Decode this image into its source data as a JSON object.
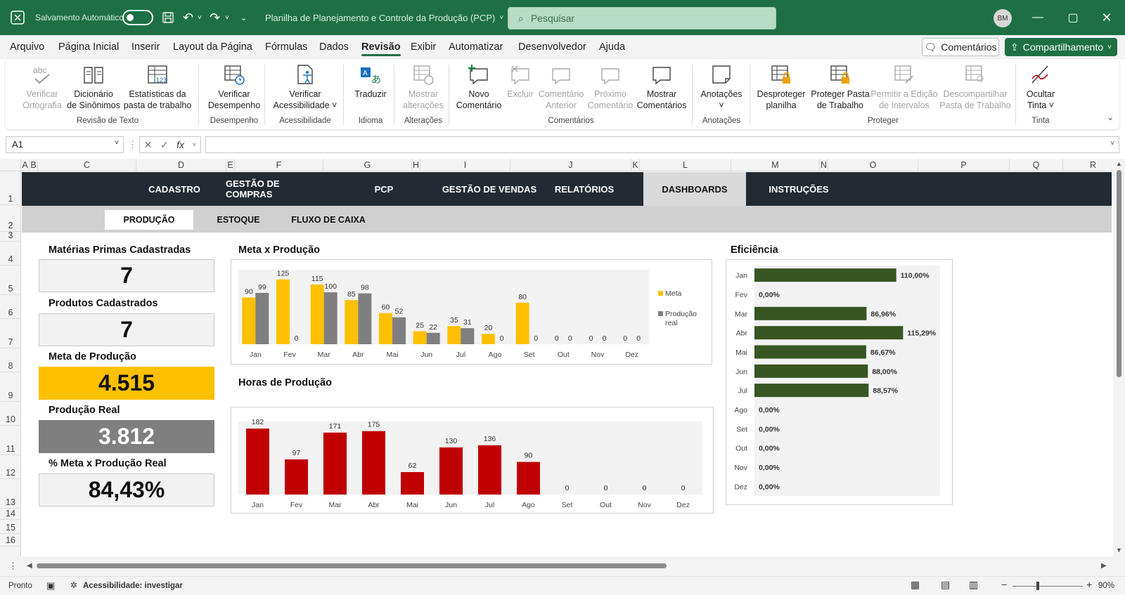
{
  "titlebar": {
    "autosave_label": "Salvamento Automático",
    "doc_title": "Planilha de Planejamento e Controle da Produção (PCP)",
    "search_placeholder": "Pesquisar",
    "avatar_initials": "BM"
  },
  "menu": {
    "items": [
      "Arquivo",
      "Página Inicial",
      "Inserir",
      "Layout da Página",
      "Fórmulas",
      "Dados",
      "Revisão",
      "Exibir",
      "Automatizar",
      "Desenvolvedor",
      "Ajuda"
    ],
    "active": "Revisão",
    "comments_button": "Comentários",
    "share_button": "Compartilhamento"
  },
  "ribbon": {
    "buttons": {
      "spelling": [
        "Verificar",
        "Ortografia"
      ],
      "thesaurus": [
        "Dicionário",
        "de Sinônimos"
      ],
      "stats": [
        "Estatísticas da",
        "pasta de trabalho"
      ],
      "performance": [
        "Verificar",
        "Desempenho"
      ],
      "accessibility": [
        "Verificar",
        "Acessibilidade ˅"
      ],
      "translate": [
        "Traduzir",
        ""
      ],
      "show_changes": [
        "Mostrar",
        "alterações"
      ],
      "new_comment": [
        "Novo",
        "Comentário"
      ],
      "delete": [
        "Excluir",
        ""
      ],
      "prev_comment": [
        "Comentário",
        "Anterior"
      ],
      "next_comment": [
        "Próximo",
        "Comentário"
      ],
      "show_comments": [
        "Mostrar",
        "Comentários"
      ],
      "notes": [
        "Anotações",
        "˅"
      ],
      "unprotect_sheet": [
        "Desproteger",
        "planilha"
      ],
      "protect_workbook": [
        "Proteger Pasta",
        "de Trabalho"
      ],
      "allow_edit": [
        "Permitir a Edição",
        "de Intervalos"
      ],
      "unshare": [
        "Descompartilhar",
        "Pasta de Trabalho"
      ],
      "hide_ink": [
        "Ocultar",
        "Tinta ˅"
      ]
    },
    "groups": [
      "Revisão de Texto",
      "Desempenho",
      "Acessibilidade",
      "Idioma",
      "Alterações",
      "Comentários",
      "Anotações",
      "Proteger",
      "Tinta"
    ]
  },
  "formula_bar": {
    "name_box": "A1",
    "fx": "fx",
    "value": ""
  },
  "columns": [
    "A",
    "B",
    "C",
    "D",
    "E",
    "F",
    "G",
    "H",
    "I",
    "J",
    "K",
    "L",
    "M",
    "N",
    "O",
    "P",
    "Q",
    "R"
  ],
  "rows": [
    "1",
    "2",
    "3",
    "4",
    "5",
    "6",
    "7",
    "8",
    "9",
    "10",
    "11",
    "12",
    "13",
    "14",
    "15",
    "16"
  ],
  "dashboard": {
    "nav": [
      "CADASTRO",
      "GESTÃO DE COMPRAS",
      "PCP",
      "GESTÃO DE VENDAS",
      "RELATÓRIOS",
      "DASHBOARDS",
      "INSTRUÇÕES"
    ],
    "nav_active": "DASHBOARDS",
    "subnav": [
      "PRODUÇÃO",
      "ESTOQUE",
      "FLUXO DE CAIXA"
    ],
    "subnav_active": "PRODUÇÃO",
    "kpis": [
      {
        "label": "Matérias Primas Cadastradas",
        "value": "7",
        "style": "plain"
      },
      {
        "label": "Produtos Cadastrados",
        "value": "7",
        "style": "plain"
      },
      {
        "label": "Meta de Produção",
        "value": "4.515",
        "style": "yellow"
      },
      {
        "label": "Produção Real",
        "value": "3.812",
        "style": "gray"
      },
      {
        "label": "% Meta x Produção Real",
        "value": "84,43%",
        "style": "plain"
      }
    ]
  },
  "chart_data": [
    {
      "type": "bar",
      "title": "Meta x Produção",
      "categories": [
        "Jan",
        "Fev",
        "Mar",
        "Abr",
        "Mai",
        "Jun",
        "Jul",
        "Ago",
        "Set",
        "Out",
        "Nov",
        "Dez"
      ],
      "series": [
        {
          "name": "Meta",
          "values": [
            90,
            125,
            115,
            85,
            60,
            25,
            35,
            20,
            80,
            0,
            0,
            0
          ],
          "color": "#ffc000"
        },
        {
          "name": "Produção real",
          "values": [
            99,
            0,
            100,
            98,
            52,
            22,
            31,
            0,
            0,
            0,
            0,
            0
          ],
          "color": "#7f7f7f"
        }
      ],
      "ylim": [
        0,
        130
      ],
      "legend": "right"
    },
    {
      "type": "bar",
      "title": "Horas de Produção",
      "categories": [
        "Jan",
        "Fev",
        "Mar",
        "Abr",
        "Mai",
        "Jun",
        "Jul",
        "Ago",
        "Set",
        "Out",
        "Nov",
        "Dez"
      ],
      "values": [
        182,
        97,
        171,
        175,
        62,
        130,
        136,
        90,
        0,
        0,
        0,
        0
      ],
      "color": "#c00000",
      "ylim": [
        0,
        190
      ]
    },
    {
      "type": "bar",
      "orientation": "horizontal",
      "title": "Eficiência",
      "categories": [
        "Jan",
        "Fev",
        "Mar",
        "Abr",
        "Mai",
        "Jun",
        "Jul",
        "Ago",
        "Set",
        "Out",
        "Nov",
        "Dez"
      ],
      "values": [
        110.0,
        0.0,
        86.96,
        115.29,
        86.67,
        88.0,
        88.57,
        0.0,
        0.0,
        0.0,
        0.0,
        0.0
      ],
      "labels": [
        "110,00%",
        "0,00%",
        "86,96%",
        "115,29%",
        "86,67%",
        "88,00%",
        "88,57%",
        "0,00%",
        "0,00%",
        "0,00%",
        "0,00%",
        "0,00%"
      ],
      "color": "#375623",
      "xlim": [
        0,
        120
      ]
    }
  ],
  "status": {
    "ready": "Pronto",
    "accessibility": "Acessibilidade: investigar",
    "zoom": "90%"
  },
  "colors": {
    "excel_green": "#1e7044",
    "nav_dark": "#222a33",
    "meta_yellow": "#ffc000",
    "real_gray": "#7f7f7f",
    "hours_red": "#c00000",
    "eff_green": "#375623"
  }
}
